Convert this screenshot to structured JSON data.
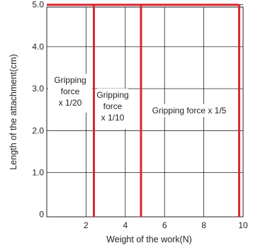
{
  "chart_data": {
    "type": "line",
    "title": "",
    "xlabel": "Weight of the work(N)",
    "ylabel": "Length of the attachment(cm)",
    "xlim": [
      0,
      10
    ],
    "ylim": [
      0,
      5
    ],
    "xticks": [
      "2",
      "4",
      "6",
      "8",
      "10"
    ],
    "yticks": [
      "0",
      "1.0",
      "2.0",
      "3.0",
      "4.0",
      "5.0"
    ],
    "grid": true,
    "limit_color": "#d7282f",
    "limits": [
      {
        "x": 2.4,
        "y_max": 5.0
      },
      {
        "x": 4.8,
        "y_max": 5.0
      },
      {
        "x": 9.8,
        "y_max": 5.0
      }
    ],
    "regions": [
      {
        "lines": [
          "Gripping",
          "force",
          "x 1/20"
        ]
      },
      {
        "lines": [
          "Gripping",
          "force",
          "x 1/10"
        ]
      },
      {
        "lines": [
          "Gripping force x 1/5"
        ]
      }
    ]
  }
}
